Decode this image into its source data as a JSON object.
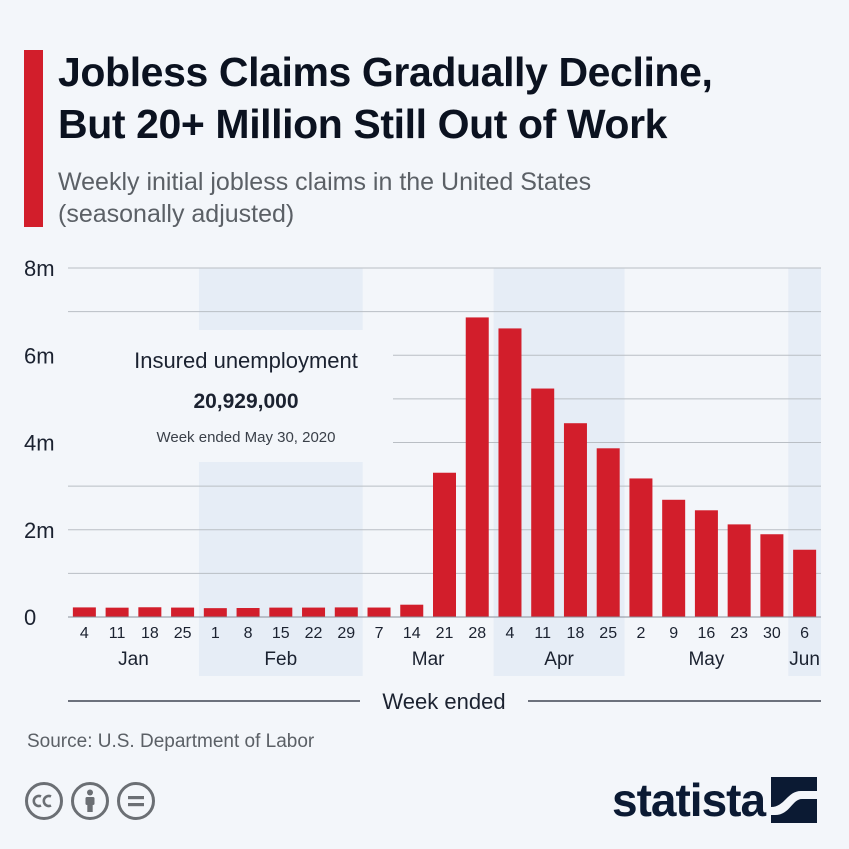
{
  "title_lines": [
    "Jobless Claims Gradually Decline,",
    "But 20+ Million Still Out of Work"
  ],
  "subtitle_lines": [
    "Weekly initial jobless claims in the United States",
    "(seasonally adjusted)"
  ],
  "source": "Source: U.S. Department of Labor",
  "brand": "statista",
  "colors": {
    "accent": "#d21e2b",
    "bar": "#d21e2b",
    "band": "#e6edf6",
    "title": "#0b1220",
    "brand": "#0b1a33"
  },
  "icons": [
    "cc-icon",
    "by-icon",
    "nd-icon",
    "statista-logo-icon"
  ],
  "chart_data": {
    "type": "bar",
    "title": "Jobless Claims Gradually Decline, But 20+ Million Still Out of Work",
    "subtitle": "Weekly initial jobless claims in the United States (seasonally adjusted)",
    "xlabel": "Week ended",
    "ylabel": "",
    "ylim": [
      0,
      8000000
    ],
    "y_ticks": [
      0,
      2000000,
      4000000,
      6000000,
      8000000
    ],
    "y_tick_labels": [
      "0",
      "2m",
      "4m",
      "6m",
      "8m"
    ],
    "grid": true,
    "categories": [
      "4",
      "11",
      "18",
      "25",
      "1",
      "8",
      "15",
      "22",
      "29",
      "7",
      "14",
      "21",
      "28",
      "4",
      "11",
      "18",
      "25",
      "2",
      "9",
      "16",
      "23",
      "30",
      "6"
    ],
    "values": [
      220000,
      214000,
      223000,
      216000,
      203000,
      206000,
      215000,
      216000,
      220000,
      217000,
      282000,
      3307000,
      6867000,
      6615000,
      5237000,
      4442000,
      3867000,
      3176000,
      2687000,
      2446000,
      2123000,
      1897000,
      1542000
    ],
    "months": [
      {
        "label": "Jan",
        "start": 0,
        "count": 4,
        "shaded": false
      },
      {
        "label": "Feb",
        "start": 4,
        "count": 5,
        "shaded": true
      },
      {
        "label": "Mar",
        "start": 9,
        "count": 4,
        "shaded": false
      },
      {
        "label": "Apr",
        "start": 13,
        "count": 4,
        "shaded": true
      },
      {
        "label": "May",
        "start": 17,
        "count": 5,
        "shaded": false
      },
      {
        "label": "Jun",
        "start": 22,
        "count": 1,
        "shaded": true
      }
    ],
    "annotation": {
      "title": "Insured unemployment",
      "value": "20,929,000",
      "note": "Week ended May 30, 2020"
    }
  }
}
